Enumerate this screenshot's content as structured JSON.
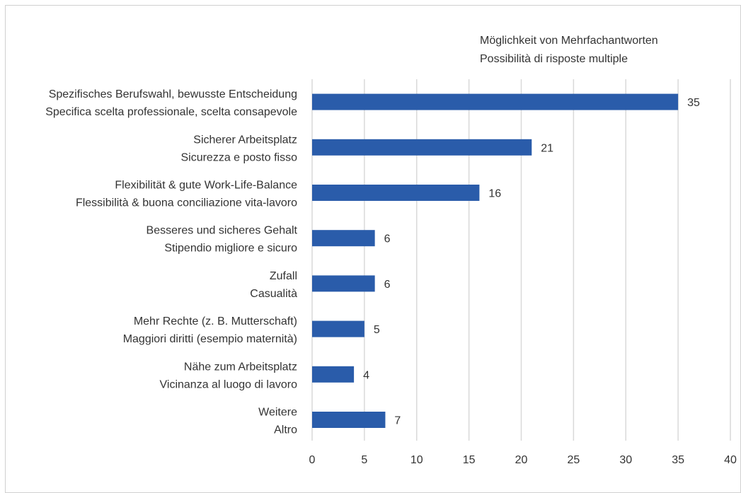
{
  "chart_data": {
    "type": "bar",
    "orientation": "horizontal",
    "note_lines": [
      "Möglichkeit von Mehrfachantworten",
      "Possibilità di risposte multiple"
    ],
    "categories": [
      [
        "Spezifisches Berufswahl, bewusste Entscheidung",
        "Specifica scelta professionale, scelta consapevole"
      ],
      [
        "Sicherer Arbeitsplatz",
        "Sicurezza e posto fisso"
      ],
      [
        "Flexibilität & gute Work-Life-Balance",
        "Flessibilità & buona conciliazione vita-lavoro"
      ],
      [
        "Besseres und sicheres Gehalt ",
        "Stipendio migliore e sicuro"
      ],
      [
        "Zufall",
        "Casualità"
      ],
      [
        "Mehr Rechte (z. B. Mutterschaft)",
        "Maggiori diritti (esempio maternità)"
      ],
      [
        "Nähe zum Arbeitsplatz",
        "Vicinanza al luogo di lavoro"
      ],
      [
        "Weitere",
        "Altro"
      ]
    ],
    "values": [
      35,
      21,
      16,
      6,
      6,
      5,
      4,
      7
    ],
    "value_labels": [
      "35",
      "21",
      "16",
      "6",
      "6",
      "5",
      "4",
      "7"
    ],
    "xlim": [
      0,
      40
    ],
    "xticks": [
      0,
      5,
      10,
      15,
      20,
      25,
      30,
      35,
      40
    ],
    "grid": "vertical",
    "bar_color": "#2a5caa",
    "grid_color": "#d9d9d9"
  }
}
